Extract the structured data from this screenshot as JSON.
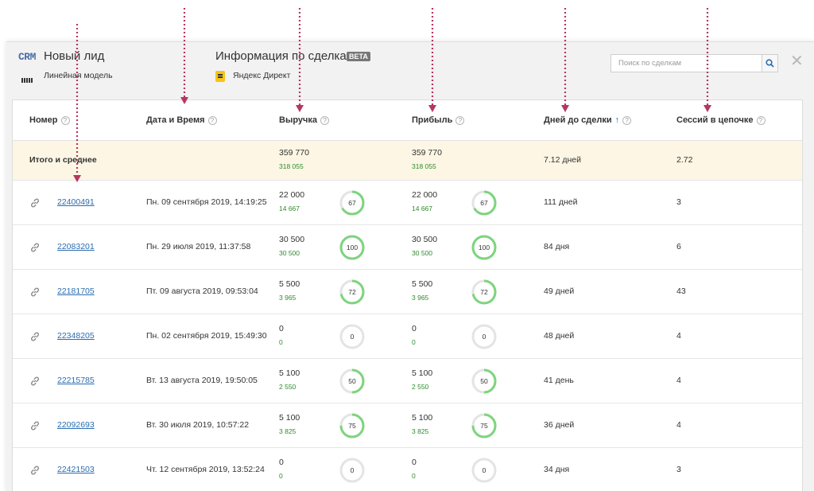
{
  "header": {
    "logo": "CRM",
    "lead_title": "Новый лид",
    "model_label": "Линейная модель",
    "deals_title": "Информация по сделкам",
    "beta": "BETA",
    "source_label": "Яндекс Директ",
    "search_placeholder": "Поиск по сделкам"
  },
  "table": {
    "columns": {
      "number": "Номер",
      "datetime": "Дата и Время",
      "revenue": "Выручка",
      "profit": "Прибыль",
      "days": "Дней до сделки",
      "sessions": "Сессий в цепочке"
    },
    "total": {
      "label": "Итого и среднее",
      "revenue": "359 770",
      "revenue_sub": "318 055",
      "profit": "359 770",
      "profit_sub": "318 055",
      "days": "7.12 дней",
      "sessions": "2.72"
    },
    "rows": [
      {
        "id": "22400491",
        "date": "Пн. 09 сентября 2019, 14:19:25",
        "revenue": "22 000",
        "revenue_sub": "14 667",
        "revenue_pct": 67,
        "profit": "22 000",
        "profit_sub": "14 667",
        "profit_pct": 67,
        "days": "111 дней",
        "sessions": "3"
      },
      {
        "id": "22083201",
        "date": "Пн. 29 июля 2019, 11:37:58",
        "revenue": "30 500",
        "revenue_sub": "30 500",
        "revenue_pct": 100,
        "profit": "30 500",
        "profit_sub": "30 500",
        "profit_pct": 100,
        "days": "84 дня",
        "sessions": "6"
      },
      {
        "id": "22181705",
        "date": "Пт. 09 августа 2019, 09:53:04",
        "revenue": "5 500",
        "revenue_sub": "3 965",
        "revenue_pct": 72,
        "profit": "5 500",
        "profit_sub": "3 965",
        "profit_pct": 72,
        "days": "49 дней",
        "sessions": "43"
      },
      {
        "id": "22348205",
        "date": "Пн. 02 сентября 2019, 15:49:30",
        "revenue": "0",
        "revenue_sub": "0",
        "revenue_pct": 0,
        "profit": "0",
        "profit_sub": "0",
        "profit_pct": 0,
        "days": "48 дней",
        "sessions": "4"
      },
      {
        "id": "22215785",
        "date": "Вт. 13 августа 2019, 19:50:05",
        "revenue": "5 100",
        "revenue_sub": "2 550",
        "revenue_pct": 50,
        "profit": "5 100",
        "profit_sub": "2 550",
        "profit_pct": 50,
        "days": "41 день",
        "sessions": "4"
      },
      {
        "id": "22092693",
        "date": "Вт. 30 июля 2019, 10:57:22",
        "revenue": "5 100",
        "revenue_sub": "3 825",
        "revenue_pct": 75,
        "profit": "5 100",
        "profit_sub": "3 825",
        "profit_pct": 75,
        "days": "36 дней",
        "sessions": "4"
      },
      {
        "id": "22421503",
        "date": "Чт. 12 сентября 2019, 13:52:24",
        "revenue": "0",
        "revenue_sub": "0",
        "revenue_pct": 0,
        "profit": "0",
        "profit_sub": "0",
        "profit_pct": 0,
        "days": "34 дня",
        "sessions": "3"
      }
    ]
  },
  "colors": {
    "link": "#2a6db0",
    "sub_value": "#2e8b2e",
    "ring": "#7ed47e",
    "ring_track": "#e4e4e4",
    "total_bg": "#fdf6e4",
    "arrow": "#b5375f"
  }
}
